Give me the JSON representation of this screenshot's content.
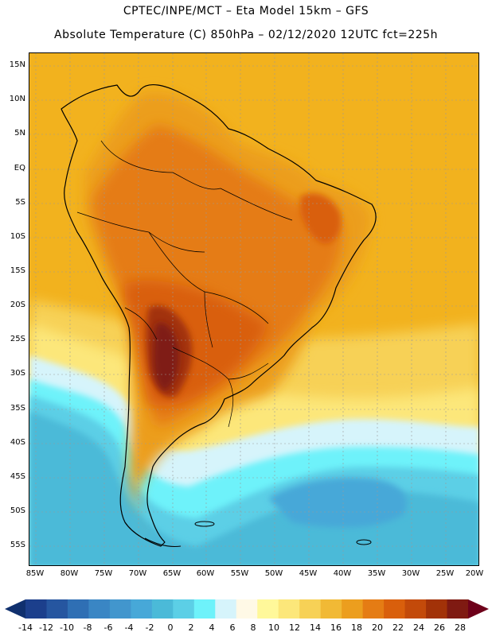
{
  "header": {
    "line1": "CPTEC/INPE/MCT –  Eta Model 15km – GFS",
    "line2": "Absolute Temperature (C) 850hPa – 02/12/2020 12UTC fct=225h"
  },
  "axes": {
    "lat_labels": [
      "15N",
      "10N",
      "5N",
      "EQ",
      "5S",
      "10S",
      "15S",
      "20S",
      "25S",
      "30S",
      "35S",
      "40S",
      "45S",
      "50S",
      "55S"
    ],
    "lon_labels": [
      "85W",
      "80W",
      "75W",
      "70W",
      "65W",
      "60W",
      "55W",
      "50W",
      "45W",
      "40W",
      "35W",
      "30W",
      "25W",
      "20W"
    ]
  },
  "colorbar": {
    "labels": [
      "-14",
      "-12",
      "-10",
      "-8",
      "-6",
      "-4",
      "-2",
      "0",
      "2",
      "4",
      "6",
      "8",
      "10",
      "12",
      "14",
      "16",
      "18",
      "20",
      "22",
      "24",
      "26",
      "28"
    ],
    "low_extend_color": "#10306e",
    "high_extend_color": "#6e001a",
    "colors": [
      "#1c3f8c",
      "#2656a0",
      "#2f6fb4",
      "#3a86c4",
      "#4296cd",
      "#47a8d8",
      "#4bbad8",
      "#5ccfe6",
      "#6ef2fa",
      "#d6f4fb",
      "#fff9e6",
      "#fff89a",
      "#fce77a",
      "#f7d156",
      "#f1b935",
      "#ec9e1e",
      "#e57c14",
      "#d95f0c",
      "#c34a0a",
      "#a23208",
      "#7f1a12"
    ]
  },
  "palette": {
    "ocean_warm": "#f2b21e",
    "land_hot": "#d9750f",
    "land_very_hot": "#b34a0c",
    "core": "#8a1a16",
    "cool_ocean": "#4bbad8",
    "coast_line": "#000000"
  }
}
